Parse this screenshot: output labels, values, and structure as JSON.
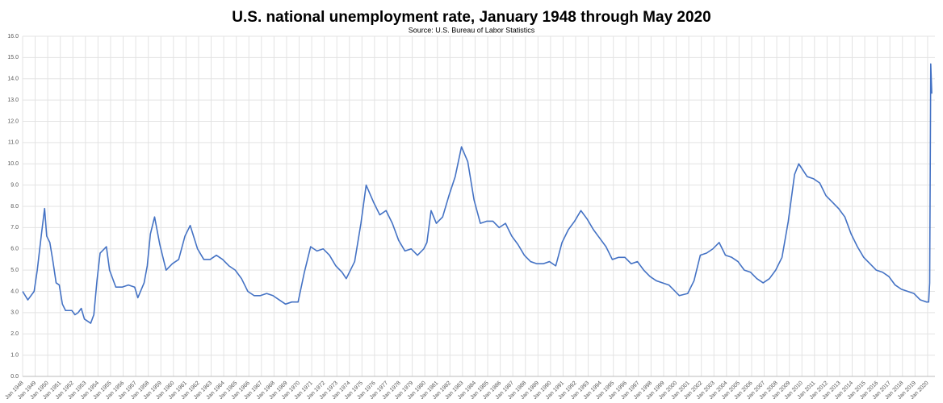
{
  "chart_data": {
    "type": "line",
    "title": "U.S. national unemployment rate, January 1948 through May 2020",
    "subtitle": "Source: U.S. Bureau of Labor Statistics",
    "color": "#4472c4",
    "grid": true,
    "ylim": [
      0,
      16
    ],
    "yticks": [
      {
        "value": 0,
        "label": "0.0"
      },
      {
        "value": 1,
        "label": "1.0"
      },
      {
        "value": 2,
        "label": "2.0"
      },
      {
        "value": 3,
        "label": "3.0"
      },
      {
        "value": 4,
        "label": "4.0"
      },
      {
        "value": 5,
        "label": "5.0"
      },
      {
        "value": 6,
        "label": "6.0"
      },
      {
        "value": 7,
        "label": "7.0"
      },
      {
        "value": 8,
        "label": "8.0"
      },
      {
        "value": 9,
        "label": "9.0"
      },
      {
        "value": 10,
        "label": "10.0"
      },
      {
        "value": 11,
        "label": "11.0"
      },
      {
        "value": 12,
        "label": "12.0"
      },
      {
        "value": 13,
        "label": "13.0"
      },
      {
        "value": 14,
        "label": "14.0"
      },
      {
        "value": 15,
        "label": "15.0"
      },
      {
        "value": 16,
        "label": "16.0"
      }
    ],
    "xlim": [
      "1948-01",
      "2020-08"
    ],
    "xticks": [
      {
        "value": "1948-01",
        "label": "Jan 1948"
      },
      {
        "value": "1949-01",
        "label": "Jan 1949"
      },
      {
        "value": "1950-01",
        "label": "Jan 1950"
      },
      {
        "value": "1951-01",
        "label": "Jan 1951"
      },
      {
        "value": "1952-01",
        "label": "Jan 1952"
      },
      {
        "value": "1953-01",
        "label": "Jan 1953"
      },
      {
        "value": "1954-01",
        "label": "Jan 1954"
      },
      {
        "value": "1955-01",
        "label": "Jan 1955"
      },
      {
        "value": "1956-01",
        "label": "Jan 1956"
      },
      {
        "value": "1957-01",
        "label": "Jan 1957"
      },
      {
        "value": "1958-01",
        "label": "Jan 1958"
      },
      {
        "value": "1959-01",
        "label": "Jan 1959"
      },
      {
        "value": "1960-01",
        "label": "Jan 1960"
      },
      {
        "value": "1961-01",
        "label": "Jan 1961"
      },
      {
        "value": "1962-01",
        "label": "Jan 1962"
      },
      {
        "value": "1963-01",
        "label": "Jan 1963"
      },
      {
        "value": "1964-01",
        "label": "Jan 1964"
      },
      {
        "value": "1965-01",
        "label": "Jan 1965"
      },
      {
        "value": "1966-01",
        "label": "Jan 1966"
      },
      {
        "value": "1967-01",
        "label": "Jan 1967"
      },
      {
        "value": "1968-01",
        "label": "Jan 1968"
      },
      {
        "value": "1969-01",
        "label": "Jan 1969"
      },
      {
        "value": "1970-01",
        "label": "Jan 1970"
      },
      {
        "value": "1971-01",
        "label": "Jan 1971"
      },
      {
        "value": "1972-01",
        "label": "Jan 1972"
      },
      {
        "value": "1973-01",
        "label": "Jan 1973"
      },
      {
        "value": "1974-01",
        "label": "Jan 1974"
      },
      {
        "value": "1975-01",
        "label": "Jan 1975"
      },
      {
        "value": "1976-01",
        "label": "Jan 1976"
      },
      {
        "value": "1977-01",
        "label": "Jan 1977"
      },
      {
        "value": "1978-01",
        "label": "Jan 1978"
      },
      {
        "value": "1979-01",
        "label": "Jan 1979"
      },
      {
        "value": "1980-01",
        "label": "Jan 1980"
      },
      {
        "value": "1981-01",
        "label": "Jan 1981"
      },
      {
        "value": "1982-01",
        "label": "Jan 1982"
      },
      {
        "value": "1983-01",
        "label": "Jan 1983"
      },
      {
        "value": "1984-01",
        "label": "Jan 1984"
      },
      {
        "value": "1985-01",
        "label": "Jan 1985"
      },
      {
        "value": "1986-01",
        "label": "Jan 1986"
      },
      {
        "value": "1987-01",
        "label": "Jan 1987"
      },
      {
        "value": "1988-01",
        "label": "Jan 1988"
      },
      {
        "value": "1989-01",
        "label": "Jan 1989"
      },
      {
        "value": "1990-01",
        "label": "Jan 1990"
      },
      {
        "value": "1991-01",
        "label": "Jan 1991"
      },
      {
        "value": "1992-01",
        "label": "Jan 1992"
      },
      {
        "value": "1993-01",
        "label": "Jan 1993"
      },
      {
        "value": "1994-01",
        "label": "Jan 1994"
      },
      {
        "value": "1995-01",
        "label": "Jan 1995"
      },
      {
        "value": "1996-01",
        "label": "Jan 1996"
      },
      {
        "value": "1997-01",
        "label": "Jan 1997"
      },
      {
        "value": "1998-01",
        "label": "Jan 1998"
      },
      {
        "value": "1999-01",
        "label": "Jan 1999"
      },
      {
        "value": "2000-01",
        "label": "Jan 2000"
      },
      {
        "value": "2001-01",
        "label": "Jan 2001"
      },
      {
        "value": "2002-01",
        "label": "Jan 2002"
      },
      {
        "value": "2003-01",
        "label": "Jan 2003"
      },
      {
        "value": "2004-01",
        "label": "Jan 2004"
      },
      {
        "value": "2005-01",
        "label": "Jan 2005"
      },
      {
        "value": "2006-01",
        "label": "Jan 2006"
      },
      {
        "value": "2007-01",
        "label": "Jan 2007"
      },
      {
        "value": "2008-01",
        "label": "Jan 2008"
      },
      {
        "value": "2009-01",
        "label": "Jan 2009"
      },
      {
        "value": "2010-01",
        "label": "Jan 2010"
      },
      {
        "value": "2011-01",
        "label": "Jan 2011"
      },
      {
        "value": "2012-01",
        "label": "Jan 2012"
      },
      {
        "value": "2013-01",
        "label": "Jan 2013"
      },
      {
        "value": "2014-01",
        "label": "Jan 2014"
      },
      {
        "value": "2015-01",
        "label": "Jan 2015"
      },
      {
        "value": "2016-01",
        "label": "Jan 2016"
      },
      {
        "value": "2017-01",
        "label": "Jan 2017"
      },
      {
        "value": "2018-01",
        "label": "Jan 2018"
      },
      {
        "value": "2019-01",
        "label": "Jan 2019"
      },
      {
        "value": "2020-01",
        "label": "Jan 2020"
      }
    ],
    "x": [
      "1948-01",
      "1948-06",
      "1948-12",
      "1949-03",
      "1949-07",
      "1949-10",
      "1949-12",
      "1950-03",
      "1950-06",
      "1950-09",
      "1950-12",
      "1951-03",
      "1951-06",
      "1951-12",
      "1952-03",
      "1952-06",
      "1952-09",
      "1952-12",
      "1953-06",
      "1953-09",
      "1953-12",
      "1954-03",
      "1954-09",
      "1954-12",
      "1955-06",
      "1955-12",
      "1956-06",
      "1956-12",
      "1957-03",
      "1957-09",
      "1957-12",
      "1958-03",
      "1958-07",
      "1958-12",
      "1959-06",
      "1959-12",
      "1960-03",
      "1960-06",
      "1960-12",
      "1961-05",
      "1961-12",
      "1962-06",
      "1962-12",
      "1963-06",
      "1963-12",
      "1964-06",
      "1964-12",
      "1965-06",
      "1965-12",
      "1966-06",
      "1966-12",
      "1967-06",
      "1967-12",
      "1968-06",
      "1968-12",
      "1969-06",
      "1969-12",
      "1970-06",
      "1970-12",
      "1971-06",
      "1971-12",
      "1972-06",
      "1972-12",
      "1973-06",
      "1973-10",
      "1974-06",
      "1974-12",
      "1975-05",
      "1975-12",
      "1976-06",
      "1976-12",
      "1977-06",
      "1977-12",
      "1978-06",
      "1978-12",
      "1979-06",
      "1979-12",
      "1980-03",
      "1980-07",
      "1980-12",
      "1981-06",
      "1981-12",
      "1982-06",
      "1982-12",
      "1983-06",
      "1983-12",
      "1984-06",
      "1984-12",
      "1985-06",
      "1985-12",
      "1986-06",
      "1986-12",
      "1987-06",
      "1987-12",
      "1988-06",
      "1988-12",
      "1989-06",
      "1989-12",
      "1990-06",
      "1990-12",
      "1991-06",
      "1991-12",
      "1992-06",
      "1992-12",
      "1993-06",
      "1993-12",
      "1994-06",
      "1994-12",
      "1995-06",
      "1995-12",
      "1996-06",
      "1996-12",
      "1997-06",
      "1997-12",
      "1998-06",
      "1998-12",
      "1999-06",
      "1999-12",
      "2000-04",
      "2000-12",
      "2001-06",
      "2001-12",
      "2002-06",
      "2002-12",
      "2003-06",
      "2003-12",
      "2004-06",
      "2004-12",
      "2005-06",
      "2005-12",
      "2006-06",
      "2006-12",
      "2007-06",
      "2007-12",
      "2008-06",
      "2008-12",
      "2009-06",
      "2009-10",
      "2010-06",
      "2010-12",
      "2011-06",
      "2011-12",
      "2012-06",
      "2012-12",
      "2013-06",
      "2013-12",
      "2014-06",
      "2014-12",
      "2015-06",
      "2015-12",
      "2016-06",
      "2016-12",
      "2017-06",
      "2017-12",
      "2018-06",
      "2018-12",
      "2019-06",
      "2019-12",
      "2020-02",
      "2020-03",
      "2020-04",
      "2020-05"
    ],
    "values": [
      4.0,
      3.6,
      4.0,
      5.0,
      6.7,
      7.9,
      6.6,
      6.3,
      5.4,
      4.4,
      4.3,
      3.4,
      3.1,
      3.1,
      2.9,
      3.0,
      3.2,
      2.7,
      2.5,
      2.9,
      4.5,
      5.8,
      6.1,
      5.0,
      4.2,
      4.2,
      4.3,
      4.2,
      3.7,
      4.4,
      5.2,
      6.7,
      7.5,
      6.2,
      5.0,
      5.3,
      5.4,
      5.5,
      6.6,
      7.1,
      6.0,
      5.5,
      5.5,
      5.7,
      5.5,
      5.2,
      5.0,
      4.6,
      4.0,
      3.8,
      3.8,
      3.9,
      3.8,
      3.6,
      3.4,
      3.5,
      3.5,
      4.9,
      6.1,
      5.9,
      6.0,
      5.7,
      5.2,
      4.9,
      4.6,
      5.4,
      7.2,
      9.0,
      8.2,
      7.6,
      7.8,
      7.2,
      6.4,
      5.9,
      6.0,
      5.7,
      6.0,
      6.3,
      7.8,
      7.2,
      7.5,
      8.5,
      9.4,
      10.8,
      10.1,
      8.3,
      7.2,
      7.3,
      7.3,
      7.0,
      7.2,
      6.6,
      6.2,
      5.7,
      5.4,
      5.3,
      5.3,
      5.4,
      5.2,
      6.3,
      6.9,
      7.3,
      7.8,
      7.4,
      6.9,
      6.5,
      6.1,
      5.5,
      5.6,
      5.6,
      5.3,
      5.4,
      5.0,
      4.7,
      4.5,
      4.4,
      4.3,
      4.0,
      3.8,
      3.9,
      4.5,
      5.7,
      5.8,
      6.0,
      6.3,
      5.7,
      5.6,
      5.4,
      5.0,
      4.9,
      4.6,
      4.4,
      4.6,
      5.0,
      5.6,
      7.3,
      9.5,
      10.0,
      9.4,
      9.3,
      9.1,
      8.5,
      8.2,
      7.9,
      7.5,
      6.7,
      6.1,
      5.6,
      5.3,
      5.0,
      4.9,
      4.7,
      4.3,
      4.1,
      4.0,
      3.9,
      3.6,
      3.5,
      3.5,
      4.4,
      14.7,
      13.3
    ]
  }
}
